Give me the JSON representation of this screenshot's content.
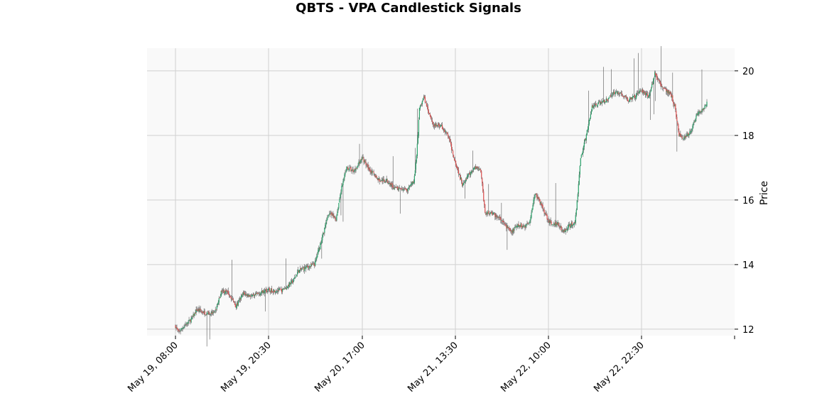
{
  "chart_data": {
    "type": "candlestick",
    "title": "QBTS - VPA Candlestick Signals",
    "ylabel": "Price",
    "ylim": [
      11.8,
      20.7
    ],
    "y_ticks": [
      12,
      14,
      16,
      18,
      20
    ],
    "x_tick_labels": [
      "May 19, 08:00",
      "May 19, 20:30",
      "May 20, 17:00",
      "May 21, 13:30",
      "May 22, 10:00",
      "May 22, 22:30"
    ],
    "grid": true,
    "colors": {
      "up": "#26a269",
      "down": "#e05050",
      "wick": "#555555",
      "plot_bg": "#f9f9f9",
      "grid": "#d0d0d0"
    },
    "price_path": [
      [
        0,
        12.1
      ],
      [
        4,
        11.9
      ],
      [
        12,
        12.1
      ],
      [
        22,
        12.3
      ],
      [
        30,
        12.6
      ],
      [
        42,
        12.5
      ],
      [
        55,
        12.5
      ],
      [
        65,
        13.2
      ],
      [
        75,
        13.1
      ],
      [
        85,
        12.7
      ],
      [
        95,
        13.1
      ],
      [
        110,
        13.0
      ],
      [
        115,
        13.1
      ],
      [
        130,
        13.2
      ],
      [
        150,
        13.2
      ],
      [
        165,
        13.5
      ],
      [
        172,
        13.8
      ],
      [
        182,
        13.9
      ],
      [
        195,
        14.0
      ],
      [
        205,
        14.8
      ],
      [
        215,
        15.6
      ],
      [
        225,
        15.4
      ],
      [
        232,
        16.3
      ],
      [
        240,
        17.0
      ],
      [
        250,
        16.9
      ],
      [
        262,
        17.3
      ],
      [
        270,
        17.0
      ],
      [
        278,
        16.8
      ],
      [
        286,
        16.6
      ],
      [
        296,
        16.6
      ],
      [
        306,
        16.4
      ],
      [
        316,
        16.3
      ],
      [
        326,
        16.3
      ],
      [
        334,
        16.6
      ],
      [
        336,
        16.9
      ],
      [
        339,
        17.7
      ],
      [
        342,
        18.8
      ],
      [
        348,
        19.2
      ],
      [
        354,
        18.8
      ],
      [
        362,
        18.3
      ],
      [
        372,
        18.3
      ],
      [
        382,
        18.0
      ],
      [
        392,
        17.2
      ],
      [
        402,
        16.5
      ],
      [
        412,
        16.8
      ],
      [
        420,
        17.0
      ],
      [
        428,
        16.9
      ],
      [
        434,
        15.6
      ],
      [
        442,
        15.6
      ],
      [
        450,
        15.5
      ],
      [
        460,
        15.3
      ],
      [
        470,
        15.0
      ],
      [
        480,
        15.2
      ],
      [
        490,
        15.2
      ],
      [
        496,
        15.3
      ],
      [
        504,
        16.2
      ],
      [
        512,
        15.9
      ],
      [
        520,
        15.5
      ],
      [
        528,
        15.2
      ],
      [
        536,
        15.3
      ],
      [
        544,
        15.0
      ],
      [
        552,
        15.2
      ],
      [
        560,
        15.3
      ],
      [
        564,
        16.2
      ],
      [
        568,
        17.3
      ],
      [
        576,
        18.0
      ],
      [
        584,
        18.9
      ],
      [
        594,
        19.0
      ],
      [
        604,
        19.1
      ],
      [
        614,
        19.3
      ],
      [
        624,
        19.3
      ],
      [
        634,
        19.1
      ],
      [
        644,
        19.2
      ],
      [
        654,
        19.4
      ],
      [
        664,
        19.2
      ],
      [
        672,
        19.9
      ],
      [
        680,
        19.6
      ],
      [
        686,
        19.4
      ],
      [
        694,
        19.3
      ],
      [
        700,
        18.9
      ],
      [
        706,
        18.0
      ],
      [
        714,
        17.9
      ],
      [
        722,
        18.1
      ],
      [
        730,
        18.6
      ],
      [
        738,
        18.8
      ],
      [
        745,
        19.0
      ]
    ]
  }
}
